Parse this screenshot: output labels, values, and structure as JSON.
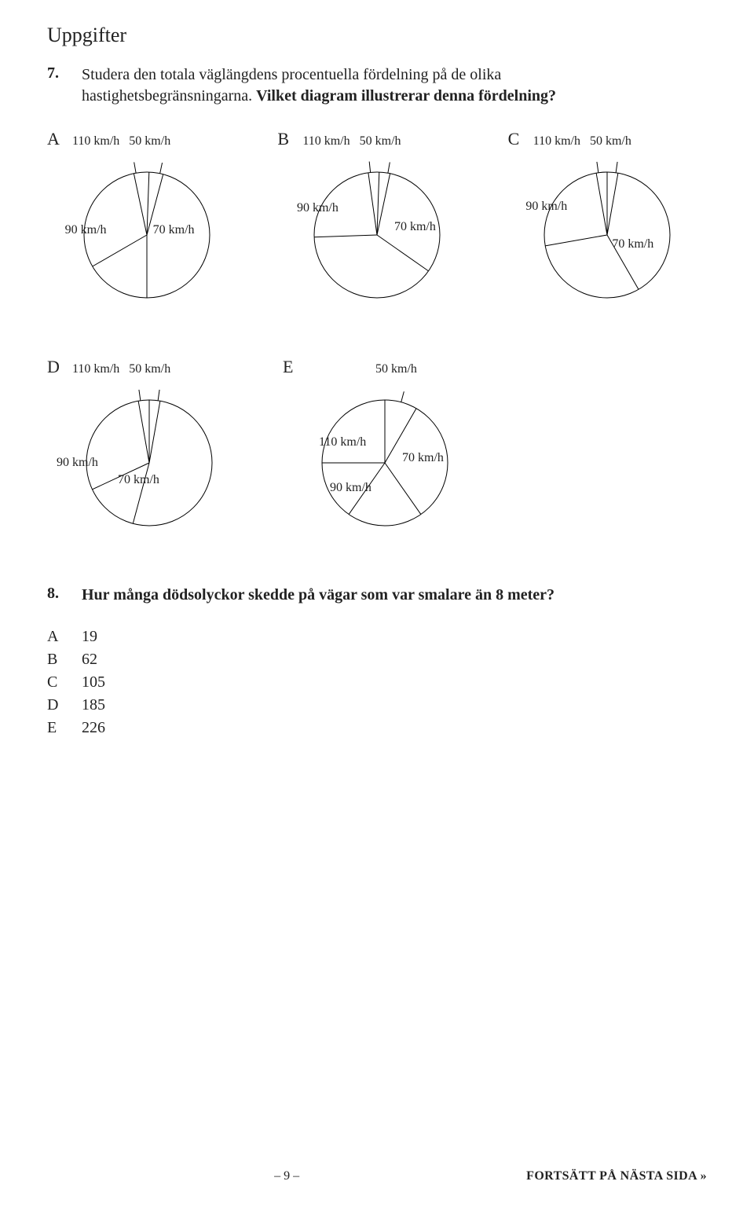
{
  "section_title": "Uppgifter",
  "q7": {
    "number": "7.",
    "text_part1": "Studera den totala väglängdens procentuella fördelning på de olika hastighetsbegränsningarna. ",
    "text_bold": "Vilket diagram illustrerar denna fördelning?"
  },
  "pie_style": {
    "radius": 80,
    "stroke": "#000000",
    "stroke_width": 1,
    "fill": "#ffffff",
    "tick_len": 14
  },
  "charts": {
    "A": {
      "letter": "A",
      "top_left": "110 km/h",
      "top_right": "50 km/h",
      "mid_left": "90 km/h",
      "mid_right": "70 km/h",
      "divider_angles_deg": [
        -102,
        -88,
        -75,
        90,
        150
      ],
      "top_tick_left_deg": -100,
      "top_tick_right_deg": -78,
      "layout": "A"
    },
    "B": {
      "letter": "B",
      "top_left": "110 km/h",
      "top_right": "50 km/h",
      "mid_left": "90 km/h",
      "mid_right": "70 km/h",
      "divider_angles_deg": [
        -98,
        -88,
        -78,
        35,
        178
      ],
      "top_tick_left_deg": -96,
      "top_tick_right_deg": -80,
      "layout": "B"
    },
    "C": {
      "letter": "C",
      "top_left": "110 km/h",
      "top_right": "50 km/h",
      "mid_left": "90 km/h",
      "mid_right": "70 km/h",
      "divider_angles_deg": [
        -100,
        -90,
        -80,
        60,
        170
      ],
      "top_tick_left_deg": -98,
      "top_tick_right_deg": -82,
      "layout": "C"
    },
    "D": {
      "letter": "D",
      "top_left": "110 km/h",
      "top_right": "50 km/h",
      "mid_left": "90 km/h",
      "mid_right": "70 km/h",
      "divider_angles_deg": [
        -100,
        -90,
        -80,
        105,
        155
      ],
      "top_tick_left_deg": -98,
      "top_tick_right_deg": -82,
      "layout": "D"
    },
    "E": {
      "letter": "E",
      "top_right": "50 km/h",
      "lbl_110": "110 km/h",
      "lbl_90": "90 km/h",
      "lbl_70": "70 km/h",
      "divider_angles_deg": [
        -90,
        -60,
        55,
        125,
        180
      ],
      "top_tick_right_deg": -75,
      "layout": "E"
    }
  },
  "q8": {
    "number": "8.",
    "text": "Hur många dödsolyckor skedde på vägar som var smalare än 8 meter?",
    "answers": [
      {
        "letter": "A",
        "value": "19"
      },
      {
        "letter": "B",
        "value": "62"
      },
      {
        "letter": "C",
        "value": "105"
      },
      {
        "letter": "D",
        "value": "185"
      },
      {
        "letter": "E",
        "value": "226"
      }
    ]
  },
  "footer": {
    "page": "– 9 –",
    "next": "FORTSÄTT PÅ NÄSTA SIDA »"
  }
}
